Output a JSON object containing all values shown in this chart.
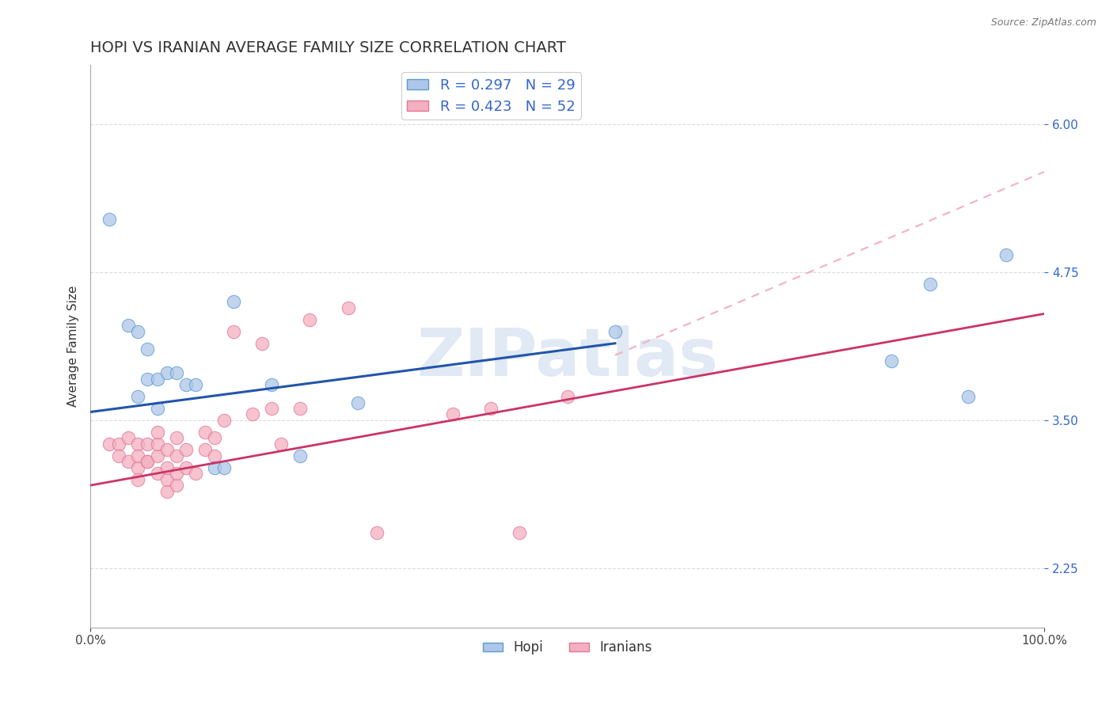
{
  "title": "HOPI VS IRANIAN AVERAGE FAMILY SIZE CORRELATION CHART",
  "source": "Source: ZipAtlas.com",
  "ylabel": "Average Family Size",
  "xlim": [
    0,
    1.0
  ],
  "ylim": [
    1.75,
    6.5
  ],
  "yticks": [
    2.25,
    3.5,
    4.75,
    6.0
  ],
  "xtick_labels": [
    "0.0%",
    "100.0%"
  ],
  "background_color": "#ffffff",
  "grid_color": "#cccccc",
  "hopi_color": "#aec6e8",
  "hopi_edge_color": "#5b9bd5",
  "iranian_color": "#f4afc0",
  "iranian_edge_color": "#e07898",
  "hopi_line_color": "#2255aa",
  "iranian_line_color": "#cc3366",
  "dashed_line_color": "#f4afc0",
  "R_hopi": 0.297,
  "N_hopi": 29,
  "R_iranian": 0.423,
  "N_iranian": 52,
  "hopi_scatter_x": [
    0.02,
    0.04,
    0.05,
    0.05,
    0.06,
    0.06,
    0.07,
    0.07,
    0.08,
    0.09,
    0.1,
    0.11,
    0.13,
    0.14,
    0.15,
    0.19,
    0.22,
    0.28,
    0.55,
    0.84,
    0.88,
    0.92,
    0.96
  ],
  "hopi_scatter_y": [
    5.2,
    4.3,
    4.25,
    3.7,
    4.1,
    3.85,
    3.85,
    3.6,
    3.9,
    3.9,
    3.8,
    3.8,
    3.1,
    3.1,
    4.5,
    3.8,
    3.2,
    3.65,
    4.25,
    4.0,
    4.65,
    3.7,
    4.9
  ],
  "iranian_scatter_x": [
    0.02,
    0.03,
    0.03,
    0.04,
    0.04,
    0.05,
    0.05,
    0.05,
    0.05,
    0.06,
    0.06,
    0.06,
    0.07,
    0.07,
    0.07,
    0.07,
    0.08,
    0.08,
    0.08,
    0.08,
    0.09,
    0.09,
    0.09,
    0.09,
    0.1,
    0.1,
    0.11,
    0.12,
    0.12,
    0.13,
    0.13,
    0.14,
    0.15,
    0.17,
    0.18,
    0.19,
    0.2,
    0.22,
    0.23,
    0.27,
    0.3,
    0.38,
    0.42,
    0.45,
    0.5
  ],
  "iranian_scatter_y": [
    3.3,
    3.3,
    3.2,
    3.15,
    3.35,
    3.1,
    3.3,
    3.2,
    3.0,
    3.15,
    3.3,
    3.15,
    3.05,
    3.2,
    3.3,
    3.4,
    2.9,
    3.0,
    3.1,
    3.25,
    2.95,
    3.05,
    3.2,
    3.35,
    3.1,
    3.25,
    3.05,
    3.25,
    3.4,
    3.2,
    3.35,
    3.5,
    4.25,
    3.55,
    4.15,
    3.6,
    3.3,
    3.6,
    4.35,
    4.45,
    2.55,
    3.55,
    3.6,
    2.55,
    3.7
  ],
  "hopi_line_x0": 0.0,
  "hopi_line_y0": 3.57,
  "hopi_line_x1": 0.55,
  "hopi_line_y1": 4.15,
  "iranian_line_x0": 0.0,
  "iranian_line_y0": 2.95,
  "iranian_line_x1": 1.0,
  "iranian_line_y1": 4.4,
  "dashed_line_x0": 0.55,
  "dashed_line_y0": 4.05,
  "dashed_line_x1": 1.0,
  "dashed_line_y1": 5.6,
  "watermark_text": "ZIPatlas",
  "title_fontsize": 14,
  "axis_label_fontsize": 11,
  "tick_fontsize": 11,
  "legend_fontsize": 13
}
